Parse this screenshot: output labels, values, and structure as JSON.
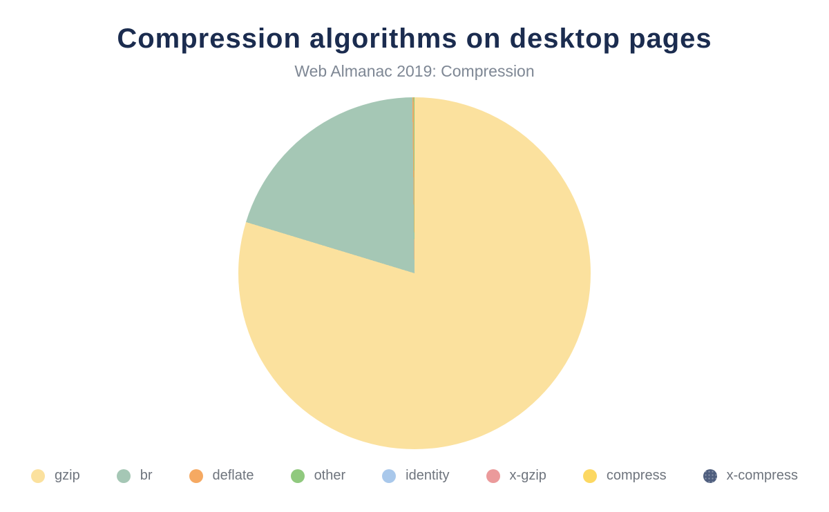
{
  "chart": {
    "title": "Compression algorithms on desktop pages",
    "subtitle": "Web Almanac 2019: Compression"
  },
  "chart_data": {
    "type": "pie",
    "title": "Compression algorithms on desktop pages",
    "subtitle": "Web Almanac 2019: Compression",
    "unit": "percent",
    "legend_position": "bottom",
    "start_angle_deg": 0,
    "direction": "clockwise",
    "series": [
      {
        "name": "gzip",
        "value": 79.7,
        "color": "#fbe19e"
      },
      {
        "name": "br",
        "value": 20.1,
        "color": "#a5c7b5"
      },
      {
        "name": "deflate",
        "value": 0.12,
        "color": "#f5a962"
      },
      {
        "name": "other",
        "value": 0.08,
        "color": "#90c97e"
      },
      {
        "name": "identity",
        "value": 0.0,
        "color": "#a9c8eb"
      },
      {
        "name": "x-gzip",
        "value": 0.0,
        "color": "#eb9a9b"
      },
      {
        "name": "compress",
        "value": 0.0,
        "color": "#fcd862"
      },
      {
        "name": "x-compress",
        "value": 0.0,
        "color": "#4e5e7e",
        "pattern": "dots"
      }
    ]
  },
  "colors": {
    "background": "#ffffff",
    "title_text": "#1b2c4f",
    "subtitle_text": "#7e8794",
    "legend_text": "#6e747d"
  }
}
